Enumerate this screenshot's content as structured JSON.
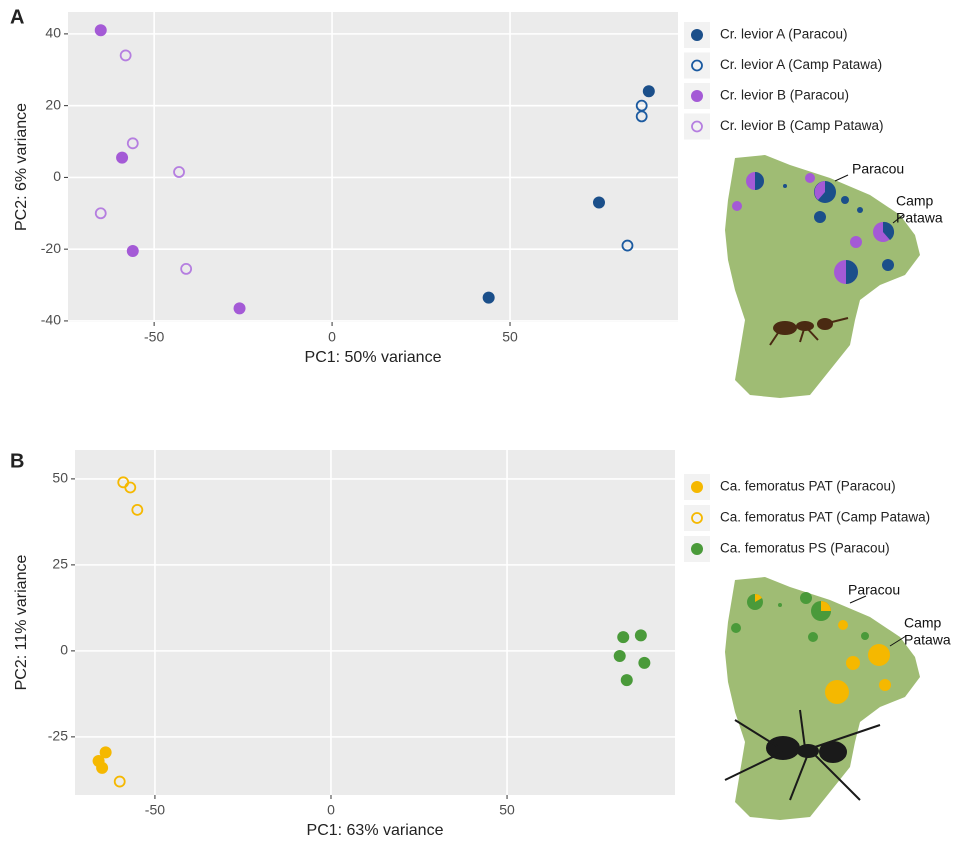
{
  "chart_data": [
    {
      "type": "scatter",
      "panel": "A",
      "x_label": "PC1: 50% variance",
      "y_label": "PC2: 6% variance",
      "xlim": [
        -74.2,
        97.2
      ],
      "ylim": [
        -40.3,
        46.1
      ],
      "xticks": [
        -50,
        0,
        50
      ],
      "yticks": [
        -40,
        -20,
        0,
        20,
        40
      ],
      "grid": true,
      "series": [
        {
          "name": "Cr. levior A (Paracou)",
          "color": "#1b4f8a",
          "marker": "filled",
          "x": [
            89,
            75,
            44
          ],
          "values": [
            24,
            -7,
            -33.5
          ]
        },
        {
          "name": "Cr. levior A (Camp Patawa)",
          "color": "#1b5aa0",
          "marker": "open",
          "x": [
            87,
            87,
            83
          ],
          "values": [
            20,
            17,
            -19
          ]
        },
        {
          "name": "Cr. levior B (Paracou)",
          "color": "#a45ad6",
          "marker": "filled",
          "x": [
            -65,
            -59,
            -56,
            -26
          ],
          "values": [
            41,
            5.5,
            -20.5,
            -36.5
          ]
        },
        {
          "name": "Cr. levior B (Camp Patawa)",
          "color": "#b57ee0",
          "marker": "open",
          "x": [
            -58,
            -56,
            -43,
            -65,
            -41
          ],
          "values": [
            34,
            9.5,
            1.5,
            -10,
            -25.5
          ]
        }
      ],
      "annotations": [
        "Paracou",
        "Camp",
        "Patawa"
      ]
    },
    {
      "type": "scatter",
      "panel": "B",
      "x_label": "PC1: 63% variance",
      "y_label": "PC2: 11% variance",
      "xlim": [
        -72.7,
        97.7
      ],
      "ylim": [
        -41.9,
        58.4
      ],
      "xticks": [
        -50,
        0,
        50
      ],
      "yticks": [
        -25,
        0,
        25,
        50
      ],
      "grid": true,
      "series": [
        {
          "name": "Ca. femoratus PAT (Paracou)",
          "color": "#f5b800",
          "marker": "filled",
          "x": [
            -64,
            -66,
            -65
          ],
          "values": [
            -29.5,
            -32,
            -34
          ]
        },
        {
          "name": "Ca. femoratus PAT (Camp Patawa)",
          "color": "#f5b800",
          "marker": "open",
          "x": [
            -59,
            -57,
            -55,
            -60
          ],
          "values": [
            49,
            47.5,
            41,
            -38
          ]
        },
        {
          "name": "Ca. femoratus PS (Paracou)",
          "color": "#4a9a3a",
          "marker": "filled",
          "x": [
            83,
            88,
            82,
            89,
            84
          ],
          "values": [
            4,
            4.5,
            -1.5,
            -3.5,
            -8.5
          ]
        }
      ],
      "annotations": [
        "Paracou",
        "Camp",
        "Patawa"
      ]
    }
  ]
}
